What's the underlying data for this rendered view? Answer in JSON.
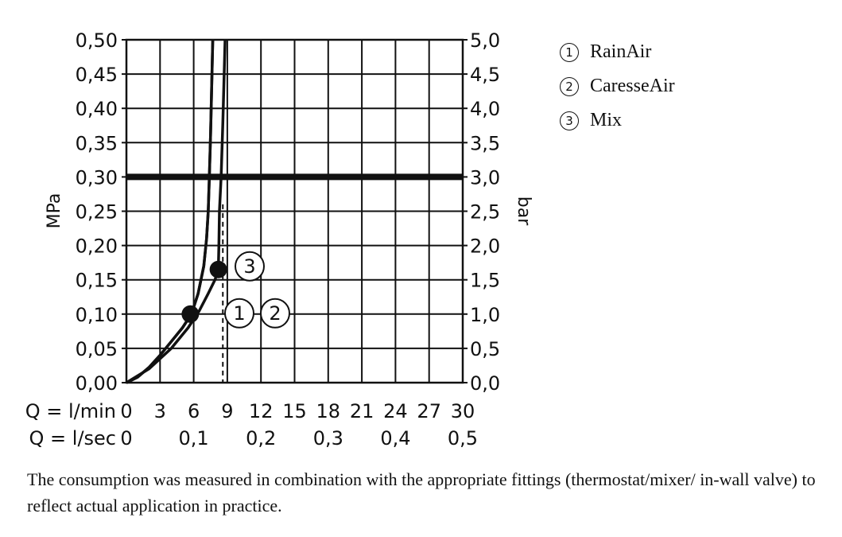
{
  "chart_data": {
    "type": "line",
    "y_left": {
      "label": "MPa",
      "range": [
        0,
        0.5
      ],
      "ticks": [
        "0,00",
        "0,05",
        "0,10",
        "0,15",
        "0,20",
        "0,25",
        "0,30",
        "0,35",
        "0,40",
        "0,45",
        "0,50"
      ]
    },
    "y_right": {
      "label": "bar",
      "range": [
        0,
        5
      ],
      "ticks": [
        "0,0",
        "0,5",
        "1,0",
        "1,5",
        "2,0",
        "2,5",
        "3,0",
        "3,5",
        "4,0",
        "4,5",
        "5,0"
      ]
    },
    "x_primary": {
      "label": "Q = l/min",
      "range": [
        0,
        30
      ],
      "ticks": [
        "0",
        "3",
        "6",
        "9",
        "12",
        "15",
        "18",
        "21",
        "24",
        "27",
        "30"
      ]
    },
    "x_secondary": {
      "label": "Q = l/sec",
      "ticks": [
        "0",
        "0,1",
        "0,2",
        "0,3",
        "0,4",
        "0,5"
      ],
      "tick_values_lmin": [
        0,
        6,
        12,
        18,
        24,
        30
      ]
    },
    "grid": true,
    "reference_line": {
      "y": 0.3
    },
    "dashed_marker": {
      "x": 8.6
    },
    "series": [
      {
        "marker": "1",
        "points": [
          [
            0,
            0
          ],
          [
            1,
            0.008
          ],
          [
            2,
            0.022
          ],
          [
            3,
            0.04
          ],
          [
            4,
            0.06
          ],
          [
            5,
            0.08
          ],
          [
            5.8,
            0.1
          ],
          [
            6.4,
            0.13
          ],
          [
            6.9,
            0.17
          ],
          [
            7.15,
            0.21
          ],
          [
            7.3,
            0.25
          ],
          [
            7.4,
            0.3
          ],
          [
            7.5,
            0.36
          ],
          [
            7.6,
            0.43
          ],
          [
            7.7,
            0.5
          ]
        ]
      },
      {
        "marker": "2",
        "points": [
          [
            0,
            0
          ],
          [
            1,
            0.008
          ],
          [
            2,
            0.022
          ],
          [
            3,
            0.04
          ],
          [
            4,
            0.06
          ],
          [
            5,
            0.08
          ],
          [
            5.8,
            0.1
          ],
          [
            6.4,
            0.13
          ],
          [
            6.9,
            0.17
          ],
          [
            7.15,
            0.21
          ],
          [
            7.3,
            0.25
          ],
          [
            7.4,
            0.3
          ],
          [
            7.5,
            0.36
          ],
          [
            7.6,
            0.43
          ],
          [
            7.7,
            0.5
          ]
        ]
      },
      {
        "marker": "3",
        "points": [
          [
            0,
            0
          ],
          [
            2,
            0.02
          ],
          [
            4,
            0.05
          ],
          [
            5.5,
            0.08
          ],
          [
            6.5,
            0.105
          ],
          [
            7.3,
            0.13
          ],
          [
            7.9,
            0.15
          ],
          [
            8.2,
            0.165
          ],
          [
            8.25,
            0.2
          ],
          [
            8.3,
            0.25
          ],
          [
            8.45,
            0.3
          ],
          [
            8.6,
            0.38
          ],
          [
            8.8,
            0.5
          ]
        ]
      }
    ],
    "points": [
      {
        "marker": "1",
        "x": 5.7,
        "y": 0.1
      },
      {
        "marker": "3",
        "x": 8.2,
        "y": 0.165
      }
    ]
  },
  "legend": [
    {
      "marker": "1",
      "label": "RainAir"
    },
    {
      "marker": "2",
      "label": "CaresseAir"
    },
    {
      "marker": "3",
      "label": "Mix"
    }
  ],
  "caption": "The consumption was measured in combination with the appropriate fittings (thermostat/mixer/ in-wall valve) to reflect actual application in practice."
}
